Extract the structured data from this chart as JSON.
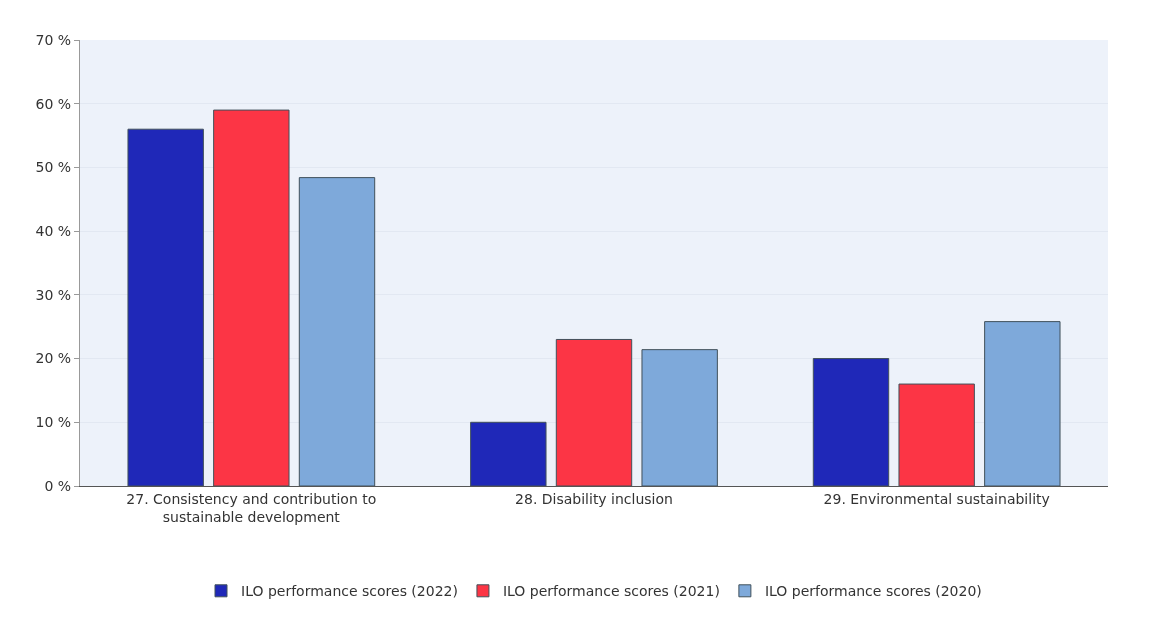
{
  "chart_data": {
    "type": "bar",
    "categories": [
      "27. Consistency and contribution to\nsustainable development",
      "28. Disability inclusion",
      "29. Environmental sustainability"
    ],
    "series": [
      {
        "name": "ILO performance scores (2022)",
        "color": "#1f28b8",
        "values": [
          56,
          10,
          20
        ]
      },
      {
        "name": "ILO performance scores (2021)",
        "color": "#fc3545",
        "values": [
          59,
          23,
          16
        ]
      },
      {
        "name": "ILO performance scores (2020)",
        "color": "#7ea9da",
        "values": [
          48.4,
          21.4,
          25.8
        ]
      }
    ],
    "ylim": [
      0,
      70
    ],
    "yticks": [
      {
        "value": 0,
        "label": "0 %"
      },
      {
        "value": 10,
        "label": "10 %"
      },
      {
        "value": 20,
        "label": "20 %"
      },
      {
        "value": 30,
        "label": "30 %"
      },
      {
        "value": 40,
        "label": "40 %"
      },
      {
        "value": 50,
        "label": "50 %"
      },
      {
        "value": 60,
        "label": "60 %"
      },
      {
        "value": 70,
        "label": "70 %"
      }
    ],
    "grid": "y",
    "legend": "bottom"
  }
}
